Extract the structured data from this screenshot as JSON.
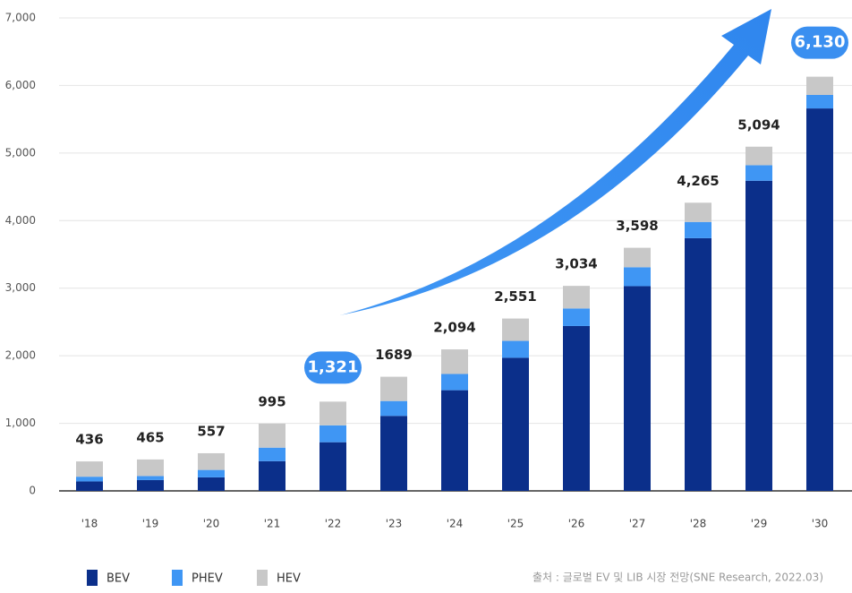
{
  "chart_data": {
    "type": "stacked_bar",
    "categories": [
      "'18",
      "'19",
      "'20",
      "'21",
      "'22",
      "'23",
      "'24",
      "'25",
      "'26",
      "'27",
      "'28",
      "'29",
      "'30"
    ],
    "series": [
      {
        "name": "BEV",
        "color": "#0b2f8a",
        "values": [
          140,
          160,
          200,
          440,
          720,
          1110,
          1490,
          1970,
          2440,
          3030,
          3740,
          4590,
          5660
        ]
      },
      {
        "name": "PHEV",
        "color": "#3f96f4",
        "values": [
          70,
          60,
          110,
          200,
          250,
          220,
          240,
          250,
          260,
          280,
          240,
          230,
          200
        ]
      },
      {
        "name": "HEV",
        "color": "#c8c8c8",
        "values": [
          226,
          245,
          247,
          355,
          351,
          359,
          364,
          331,
          334,
          288,
          285,
          274,
          270
        ]
      }
    ],
    "total_labels": [
      "436",
      "465",
      "557",
      "995",
      "1,321",
      "1689",
      "2,094",
      "2,551",
      "3,034",
      "3,598",
      "4,265",
      "5,094",
      "6,130"
    ],
    "highlighted": [
      4,
      12
    ],
    "highlight_color": "#3a8ff0",
    "ylim": [
      0,
      7000
    ],
    "yticks": [
      0,
      {
        "value": 1000,
        "label": "1,000"
      },
      {
        "value": 2000,
        "label": "2,000"
      },
      {
        "value": 3000,
        "label": "3,000"
      },
      {
        "value": 4000,
        "label": "4,000"
      },
      {
        "value": 5000,
        "label": "5,000"
      },
      {
        "value": 6000,
        "label": "6,000"
      },
      {
        "value": 7000,
        "label": "7,000"
      }
    ],
    "grid": true,
    "source": "출처 : 글로벌 EV 및 LIB 시장 전망(SNE Research, 2022.03)"
  }
}
